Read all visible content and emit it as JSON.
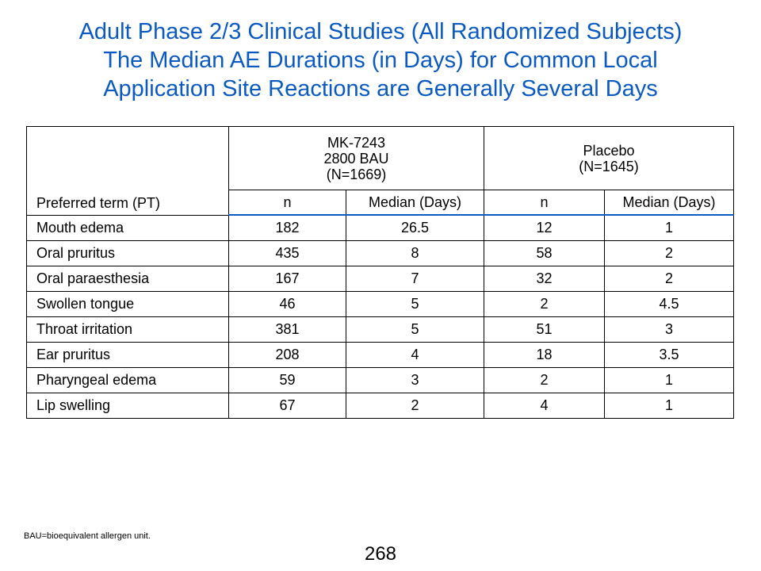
{
  "title": {
    "line1": "Adult Phase 2/3 Clinical Studies (All Randomized Subjects)",
    "line2": "The Median AE Durations (in Days) for Common Local",
    "line3": "Application Site Reactions are Generally Several Days"
  },
  "table": {
    "pt_header": "Preferred term (PT)",
    "group1": {
      "line1": "MK-7243",
      "line2": "2800 BAU",
      "line3": "(N=1669)"
    },
    "group2": {
      "line1": "Placebo",
      "line2": "(N=1645)"
    },
    "sub_headers": [
      "n",
      "Median (Days)",
      "n",
      "Median (Days)"
    ],
    "rows": [
      {
        "term": "Mouth edema",
        "mk_n": "182",
        "mk_median": "26.5",
        "pl_n": "12",
        "pl_median": "1"
      },
      {
        "term": "Oral pruritus",
        "mk_n": "435",
        "mk_median": "8",
        "pl_n": "58",
        "pl_median": "2"
      },
      {
        "term": "Oral paraesthesia",
        "mk_n": "167",
        "mk_median": "7",
        "pl_n": "32",
        "pl_median": "2"
      },
      {
        "term": "Swollen tongue",
        "mk_n": "46",
        "mk_median": "5",
        "pl_n": "2",
        "pl_median": "4.5"
      },
      {
        "term": "Throat irritation",
        "mk_n": "381",
        "mk_median": "5",
        "pl_n": "51",
        "pl_median": "3"
      },
      {
        "term": "Ear pruritus",
        "mk_n": "208",
        "mk_median": "4",
        "pl_n": "18",
        "pl_median": "3.5"
      },
      {
        "term": "Pharyngeal edema",
        "mk_n": "59",
        "mk_median": "3",
        "pl_n": "2",
        "pl_median": "1"
      },
      {
        "term": "Lip swelling",
        "mk_n": "67",
        "mk_median": "2",
        "pl_n": "4",
        "pl_median": "1"
      }
    ]
  },
  "footnote": "BAU=bioequivalent allergen unit.",
  "page_number": "268",
  "colors": {
    "title": "#0b5ac1",
    "header_rule": "#0b5ac1"
  }
}
